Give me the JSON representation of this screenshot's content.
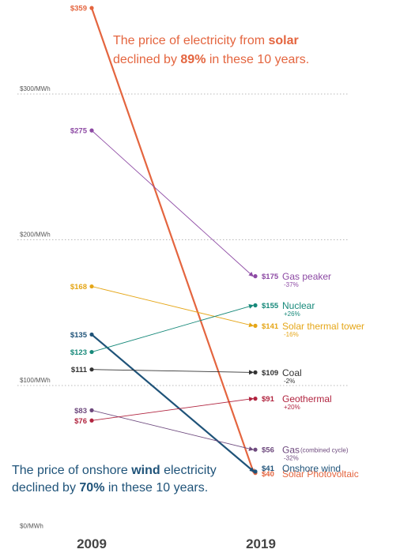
{
  "chart_data": {
    "type": "line",
    "subtype": "slope",
    "x": [
      "2009",
      "2019"
    ],
    "ylim": [
      0,
      359
    ],
    "yticks": [
      {
        "value": 0,
        "label": "$0/MWh"
      },
      {
        "value": 100,
        "label": "$100/MWh"
      },
      {
        "value": 200,
        "label": "$200/MWh"
      },
      {
        "value": 300,
        "label": "$300/MWh"
      }
    ],
    "series": [
      {
        "name": "Solar Photovoltaic",
        "start": 359,
        "end": 40,
        "start_label": "$359",
        "end_label": "$40",
        "change": "",
        "color": "#e4653f",
        "bold": true
      },
      {
        "name": "Gas peaker",
        "start": 275,
        "end": 175,
        "start_label": "$275",
        "end_label": "$175",
        "change": "-37%",
        "color": "#8d4aa4",
        "bold": false
      },
      {
        "name": "Solar thermal tower",
        "start": 168,
        "end": 141,
        "start_label": "$168",
        "end_label": "$141",
        "change": "-16%",
        "color": "#e5a617",
        "bold": false
      },
      {
        "name": "Onshore wind",
        "start": 135,
        "end": 41,
        "start_label": "$135",
        "end_label": "$41",
        "change": "",
        "color": "#1f5379",
        "bold": true
      },
      {
        "name": "Nuclear",
        "start": 123,
        "end": 155,
        "start_label": "$123",
        "end_label": "$155",
        "change": "+26%",
        "color": "#17897a",
        "bold": false
      },
      {
        "name": "Coal",
        "start": 111,
        "end": 109,
        "start_label": "$111",
        "end_label": "$109",
        "change": "-2%",
        "color": "#333333",
        "bold": false
      },
      {
        "name": "Gas",
        "name_suffix": "(combined cycle)",
        "start": 83,
        "end": 56,
        "start_label": "$83",
        "end_label": "$56",
        "change": "-32%",
        "color": "#6e4a7e",
        "bold": false
      },
      {
        "name": "Geothermal",
        "start": 76,
        "end": 91,
        "start_label": "$76",
        "end_label": "$91",
        "change": "+20%",
        "color": "#b1243f",
        "bold": false
      }
    ],
    "annotations": [
      {
        "id": "solar",
        "color": "#e4653f",
        "lines": [
          [
            {
              "t": "The price of electricity from "
            },
            {
              "t": "solar",
              "b": true
            }
          ],
          [
            {
              "t": "declined by "
            },
            {
              "t": "89%",
              "b": true
            },
            {
              "t": " in these 10 years."
            }
          ]
        ]
      },
      {
        "id": "wind",
        "color": "#1f5379",
        "lines": [
          [
            {
              "t": "The price of onshore "
            },
            {
              "t": "wind",
              "b": true
            },
            {
              "t": " electricity"
            }
          ],
          [
            {
              "t": "declined by "
            },
            {
              "t": "70%",
              "b": true
            },
            {
              "t": " in these 10 years."
            }
          ]
        ]
      }
    ]
  }
}
